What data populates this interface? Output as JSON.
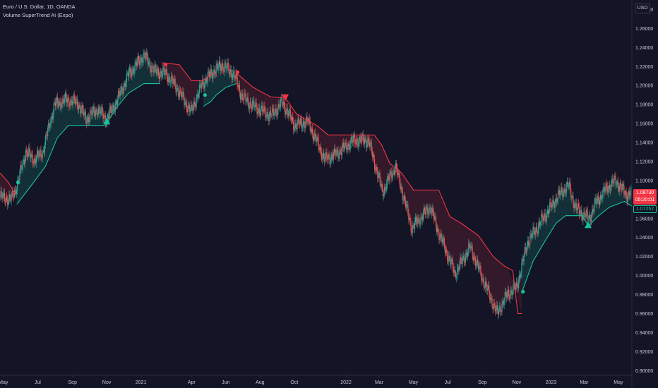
{
  "header": {
    "symbol_line": "Euro / U.S. Dollar, 1D, OANDA",
    "indicator_line": "Volume SuperTrend AI (Expo)"
  },
  "currency": "USD",
  "price_tag": {
    "price": "1.08730",
    "countdown": "05:20:01"
  },
  "supertrend_tag": "1.07252",
  "colors": {
    "background": "#131426",
    "bull": "#18c29c",
    "bear": "#f23645",
    "candle_up": "#26a69a",
    "candle_down": "#ef5350"
  },
  "chart_data": {
    "type": "line",
    "title": "Euro / U.S. Dollar, 1D, OANDA",
    "y_axis": {
      "range": [
        0.895,
        1.29
      ],
      "ticks": [
        "1.28000",
        "1.26000",
        "1.24000",
        "1.22000",
        "1.20000",
        "1.18000",
        "1.16000",
        "1.14000",
        "1.12000",
        "1.10000",
        "1.08000",
        "1.06000",
        "1.04000",
        "1.02000",
        "1.00000",
        "0.98000",
        "0.96000",
        "0.94000",
        "0.92000",
        "0.90000"
      ]
    },
    "x_axis": {
      "range": [
        "2020-04-25",
        "2023-05-25"
      ],
      "ticks": [
        {
          "label": "May",
          "date": "2020-05-01"
        },
        {
          "label": "Jul",
          "date": "2020-07-01"
        },
        {
          "label": "Sep",
          "date": "2020-09-01"
        },
        {
          "label": "Nov",
          "date": "2020-11-01"
        },
        {
          "label": "2021",
          "date": "2021-01-01"
        },
        {
          "label": "Apr",
          "date": "2021-04-01"
        },
        {
          "label": "Jun",
          "date": "2021-06-01"
        },
        {
          "label": "Aug",
          "date": "2021-08-01"
        },
        {
          "label": "Oct",
          "date": "2021-10-01"
        },
        {
          "label": "2022",
          "date": "2022-01-01"
        },
        {
          "label": "Mar",
          "date": "2022-03-01"
        },
        {
          "label": "May",
          "date": "2022-05-01"
        },
        {
          "label": "Jul",
          "date": "2022-07-01"
        },
        {
          "label": "Sep",
          "date": "2022-09-01"
        },
        {
          "label": "Nov",
          "date": "2022-11-01"
        },
        {
          "label": "2023",
          "date": "2023-01-01"
        },
        {
          "label": "Mar",
          "date": "2023-03-01"
        },
        {
          "label": "May",
          "date": "2023-05-01"
        }
      ]
    },
    "series": [
      {
        "name": "EUR/USD close",
        "points": [
          [
            "2020-04-25",
            1.083
          ],
          [
            "2020-05-15",
            1.08
          ],
          [
            "2020-05-25",
            1.095
          ],
          [
            "2020-06-10",
            1.13
          ],
          [
            "2020-06-25",
            1.122
          ],
          [
            "2020-07-10",
            1.13
          ],
          [
            "2020-07-31",
            1.18
          ],
          [
            "2020-08-20",
            1.185
          ],
          [
            "2020-09-10",
            1.182
          ],
          [
            "2020-09-25",
            1.165
          ],
          [
            "2020-10-15",
            1.175
          ],
          [
            "2020-11-01",
            1.165
          ],
          [
            "2020-11-20",
            1.185
          ],
          [
            "2020-12-10",
            1.212
          ],
          [
            "2021-01-06",
            1.232
          ],
          [
            "2021-01-25",
            1.215
          ],
          [
            "2021-02-15",
            1.212
          ],
          [
            "2021-03-05",
            1.198
          ],
          [
            "2021-03-31",
            1.172
          ],
          [
            "2021-04-20",
            1.202
          ],
          [
            "2021-05-10",
            1.215
          ],
          [
            "2021-05-25",
            1.222
          ],
          [
            "2021-06-15",
            1.212
          ],
          [
            "2021-06-30",
            1.188
          ],
          [
            "2021-07-20",
            1.178
          ],
          [
            "2021-08-20",
            1.168
          ],
          [
            "2021-09-10",
            1.182
          ],
          [
            "2021-10-01",
            1.158
          ],
          [
            "2021-10-25",
            1.162
          ],
          [
            "2021-11-24",
            1.122
          ],
          [
            "2021-12-15",
            1.128
          ],
          [
            "2022-01-14",
            1.142
          ],
          [
            "2022-02-10",
            1.142
          ],
          [
            "2022-03-07",
            1.088
          ],
          [
            "2022-03-30",
            1.115
          ],
          [
            "2022-04-28",
            1.05
          ],
          [
            "2022-05-31",
            1.072
          ],
          [
            "2022-06-15",
            1.045
          ],
          [
            "2022-07-14",
            1.002
          ],
          [
            "2022-08-10",
            1.03
          ],
          [
            "2022-08-30",
            1.0
          ],
          [
            "2022-09-27",
            0.96
          ],
          [
            "2022-10-15",
            0.98
          ],
          [
            "2022-11-01",
            0.988
          ],
          [
            "2022-11-20",
            1.035
          ],
          [
            "2022-12-20",
            1.062
          ],
          [
            "2023-01-15",
            1.085
          ],
          [
            "2023-02-01",
            1.095
          ],
          [
            "2023-02-15",
            1.07
          ],
          [
            "2023-03-10",
            1.06
          ],
          [
            "2023-03-20",
            1.075
          ],
          [
            "2023-04-10",
            1.092
          ],
          [
            "2023-04-26",
            1.1
          ],
          [
            "2023-05-15",
            1.085
          ],
          [
            "2023-05-25",
            1.087
          ]
        ]
      },
      {
        "name": "SuperTrend",
        "segments": [
          {
            "trend": "bear",
            "points": [
              [
                "2020-04-25",
                1.108
              ],
              [
                "2020-05-10",
                1.098
              ],
              [
                "2020-05-23",
                1.085
              ]
            ]
          },
          {
            "trend": "bull",
            "points": [
              [
                "2020-05-25",
                1.075
              ],
              [
                "2020-06-20",
                1.095
              ],
              [
                "2020-07-15",
                1.115
              ],
              [
                "2020-08-05",
                1.145
              ],
              [
                "2020-08-25",
                1.158
              ],
              [
                "2020-09-30",
                1.158
              ],
              [
                "2020-10-31",
                1.158
              ],
              [
                "2020-11-03",
                1.162
              ],
              [
                "2020-11-20",
                1.178
              ],
              [
                "2020-12-10",
                1.192
              ],
              [
                "2021-01-06",
                1.202
              ],
              [
                "2021-02-04",
                1.202
              ]
            ]
          },
          {
            "trend": "bear",
            "points": [
              [
                "2021-02-07",
                1.224
              ],
              [
                "2021-03-10",
                1.222
              ],
              [
                "2021-04-01",
                1.205
              ],
              [
                "2021-04-20",
                1.205
              ],
              [
                "2021-05-10",
                1.213
              ],
              [
                "2021-05-17",
                1.21
              ]
            ]
          },
          {
            "trend": "bull",
            "points": [
              [
                "2021-04-22",
                1.178
              ],
              [
                "2021-05-05",
                1.183
              ],
              [
                "2021-05-15",
                1.19
              ],
              [
                "2021-06-01",
                1.198
              ],
              [
                "2021-06-20",
                1.202
              ]
            ]
          },
          {
            "trend": "bear",
            "points": [
              [
                "2021-06-22",
                1.212
              ],
              [
                "2021-07-20",
                1.198
              ],
              [
                "2021-08-20",
                1.188
              ],
              [
                "2021-09-15",
                1.187
              ],
              [
                "2021-10-05",
                1.17
              ],
              [
                "2021-10-25",
                1.163
              ],
              [
                "2021-11-10",
                1.158
              ],
              [
                "2021-11-30",
                1.148
              ],
              [
                "2021-12-31",
                1.148
              ],
              [
                "2022-02-01",
                1.148
              ],
              [
                "2022-02-20",
                1.148
              ],
              [
                "2022-03-05",
                1.138
              ],
              [
                "2022-03-20",
                1.118
              ],
              [
                "2022-04-10",
                1.108
              ],
              [
                "2022-05-01",
                1.09
              ],
              [
                "2022-06-15",
                1.09
              ],
              [
                "2022-07-05",
                1.062
              ],
              [
                "2022-07-25",
                1.055
              ],
              [
                "2022-08-25",
                1.042
              ],
              [
                "2022-09-20",
                1.02
              ],
              [
                "2022-10-10",
                1.01
              ],
              [
                "2022-10-25",
                1.005
              ],
              [
                "2022-11-03",
                0.96
              ],
              [
                "2022-11-10",
                0.96
              ]
            ]
          },
          {
            "trend": "bull",
            "points": [
              [
                "2022-11-10",
                0.982
              ],
              [
                "2022-11-30",
                1.015
              ],
              [
                "2022-12-20",
                1.035
              ],
              [
                "2023-01-10",
                1.055
              ],
              [
                "2023-01-27",
                1.063
              ],
              [
                "2023-02-25",
                1.063
              ],
              [
                "2023-03-08",
                1.053
              ]
            ]
          },
          {
            "trend": "bull",
            "points": [
              [
                "2023-03-10",
                1.053
              ],
              [
                "2023-03-25",
                1.062
              ],
              [
                "2023-04-15",
                1.072
              ],
              [
                "2023-05-12",
                1.078
              ],
              [
                "2023-05-25",
                1.073
              ]
            ]
          }
        ]
      }
    ],
    "signals": [
      {
        "type": "dot-bull",
        "date": "2020-05-27",
        "price": 1.098
      },
      {
        "type": "triangle-bull",
        "date": "2020-11-01",
        "price": 1.162
      },
      {
        "type": "dot-bear",
        "date": "2021-02-14",
        "price": 1.222
      },
      {
        "type": "dot-bull",
        "date": "2021-04-25",
        "price": 1.19
      },
      {
        "type": "dot-bear",
        "date": "2021-06-22",
        "price": 1.214
      },
      {
        "type": "triangle-bear",
        "date": "2021-09-15",
        "price": 1.187
      },
      {
        "type": "dot-bull",
        "date": "2022-11-12",
        "price": 0.983
      },
      {
        "type": "triangle-bull",
        "date": "2023-03-08",
        "price": 1.053
      }
    ],
    "grid": false,
    "legend": "none"
  }
}
